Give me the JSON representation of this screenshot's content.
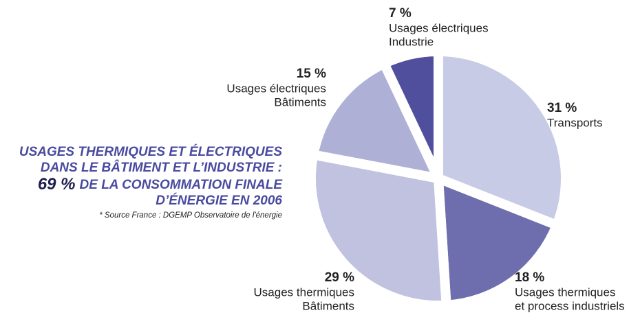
{
  "chart_data": {
    "type": "pie",
    "title": [
      "USAGES THERMIQUES ET ÉLECTRIQUES",
      "DANS LE BÂTIMENT ET L’INDUSTRIE :",
      "69 %",
      "DE LA CONSOMMATION FINALE",
      "D’ÉNERGIE EN 2006"
    ],
    "subtitle": "* Source France : DGEMP Observatoire de l'énergie",
    "categories": [
      [
        "Transports"
      ],
      [
        "Usages thermiques",
        "et process industriels"
      ],
      [
        "Usages thermiques",
        "Bâtiments"
      ],
      [
        "Usages électriques",
        "Bâtiments"
      ],
      [
        "Usages électriques",
        "Industrie"
      ]
    ],
    "values": [
      31,
      18,
      29,
      15,
      7
    ],
    "value_labels": [
      "31 %",
      "18 %",
      "29 %",
      "15 %",
      "7 %"
    ],
    "colors": [
      "#c8cbe6",
      "#6e6dae",
      "#c0c2e0",
      "#aeb0d6",
      "#4f4f9e"
    ],
    "title_color": "#4a4aa0"
  }
}
